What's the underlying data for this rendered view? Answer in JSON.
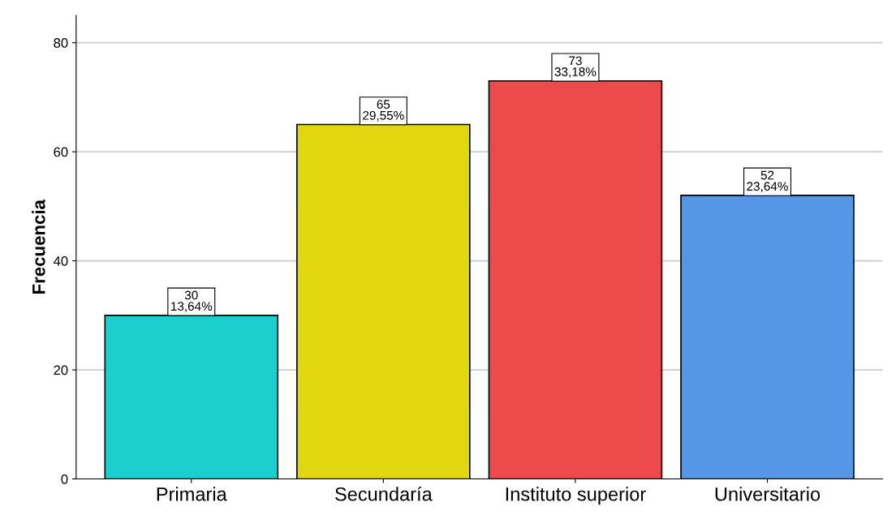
{
  "chart_data": {
    "type": "bar",
    "ylabel": "Frecuencia",
    "categories": [
      "Primaria",
      "Secundaría",
      "Instituto superior",
      "Universitario"
    ],
    "values": [
      30,
      65,
      73,
      52
    ],
    "colors": [
      "#1ccfcf",
      "#e2d60f",
      "#ec4a4b",
      "#5596e6"
    ],
    "value_labels": [
      "30\n13,64%",
      "65\n29,55%",
      "73\n33,18%",
      "52\n23,64%"
    ],
    "ylim": [
      0,
      85
    ],
    "yticks": [
      0,
      20,
      40,
      60,
      80
    ],
    "grid": "y"
  }
}
